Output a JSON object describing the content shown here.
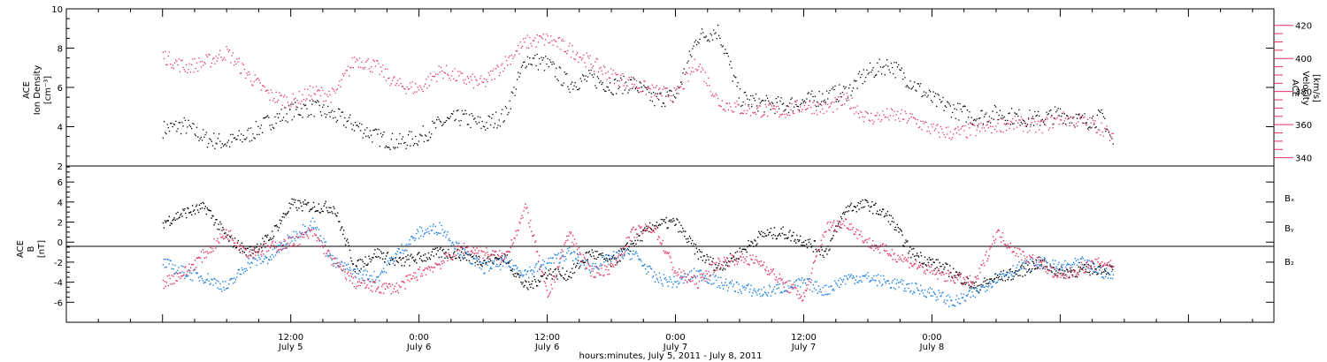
{
  "colors": {
    "black": "#000000",
    "red": "#e3325f",
    "blue": "#1a7fe0"
  },
  "chart_data": [
    {
      "type": "scatter",
      "panel": "top",
      "ylabel_left": [
        "ACE",
        "Ion Density",
        "[cm⁻³]"
      ],
      "ylabel_right": [
        "ACE",
        "Velocity",
        "[km/s]"
      ],
      "ylim_left": [
        2,
        10
      ],
      "ylim_right": [
        335,
        430
      ],
      "left_ticks": [
        "2",
        "4",
        "6",
        "8",
        "10"
      ],
      "right_ticks": [
        "340",
        "360",
        "380",
        "400",
        "420"
      ],
      "series": [
        {
          "axis": "left",
          "color": "#000000",
          "points": [
            [
              0,
              3.9
            ],
            [
              2,
              4.1
            ],
            [
              4,
              3.4
            ],
            [
              6,
              3.2
            ],
            [
              8,
              3.6
            ],
            [
              10,
              4.3
            ],
            [
              12,
              4.8
            ],
            [
              14,
              5.0
            ],
            [
              16,
              4.6
            ],
            [
              18,
              4.1
            ],
            [
              20,
              3.5
            ],
            [
              22,
              3.2
            ],
            [
              24,
              3.5
            ],
            [
              26,
              4.2
            ],
            [
              28,
              4.5
            ],
            [
              30,
              4.1
            ],
            [
              32,
              4.6
            ],
            [
              34,
              7.5
            ],
            [
              36,
              7.2
            ],
            [
              38,
              6.2
            ],
            [
              40,
              6.5
            ],
            [
              42,
              6.1
            ],
            [
              44,
              6.2
            ],
            [
              46,
              5.4
            ],
            [
              48,
              5.6
            ],
            [
              50,
              8.6
            ],
            [
              52,
              8.9
            ],
            [
              54,
              5.5
            ],
            [
              56,
              5.2
            ],
            [
              58,
              5.1
            ],
            [
              60,
              5.3
            ],
            [
              62,
              5.6
            ],
            [
              64,
              5.8
            ],
            [
              66,
              6.8
            ],
            [
              68,
              7.2
            ],
            [
              70,
              6.3
            ],
            [
              72,
              5.4
            ],
            [
              74,
              4.9
            ],
            [
              76,
              4.5
            ],
            [
              78,
              4.7
            ],
            [
              80,
              4.5
            ],
            [
              82,
              4.4
            ],
            [
              84,
              4.7
            ],
            [
              86,
              4.3
            ],
            [
              88,
              4.5
            ],
            [
              89,
              3.0
            ]
          ]
        },
        {
          "axis": "right",
          "color": "#e3325f",
          "points": [
            [
              0,
              402
            ],
            [
              2,
              395
            ],
            [
              4,
              398
            ],
            [
              6,
              404
            ],
            [
              8,
              390
            ],
            [
              10,
              378
            ],
            [
              12,
              374
            ],
            [
              14,
              380
            ],
            [
              16,
              378
            ],
            [
              18,
              400
            ],
            [
              20,
              395
            ],
            [
              22,
              384
            ],
            [
              24,
              382
            ],
            [
              26,
              393
            ],
            [
              28,
              388
            ],
            [
              30,
              385
            ],
            [
              32,
              398
            ],
            [
              34,
              410
            ],
            [
              36,
              412
            ],
            [
              38,
              406
            ],
            [
              40,
              398
            ],
            [
              42,
              390
            ],
            [
              44,
              385
            ],
            [
              46,
              380
            ],
            [
              48,
              378
            ],
            [
              50,
              398
            ],
            [
              52,
              374
            ],
            [
              54,
              370
            ],
            [
              56,
              369
            ],
            [
              58,
              368
            ],
            [
              60,
              372
            ],
            [
              62,
              370
            ],
            [
              64,
              375
            ],
            [
              66,
              364
            ],
            [
              68,
              366
            ],
            [
              70,
              364
            ],
            [
              72,
              357
            ],
            [
              74,
              355
            ],
            [
              76,
              357
            ],
            [
              78,
              360
            ],
            [
              80,
              361
            ],
            [
              82,
              359
            ],
            [
              84,
              364
            ],
            [
              86,
              362
            ],
            [
              88,
              358
            ],
            [
              89,
              350
            ]
          ]
        }
      ]
    },
    {
      "type": "scatter",
      "panel": "bottom",
      "ylabel": [
        "ACE",
        "B",
        "[nT]"
      ],
      "ylim": [
        -8,
        7.6
      ],
      "yticks": [
        "-6",
        "-4",
        "-2",
        "0",
        "2",
        "4",
        "6"
      ],
      "legend": [
        "Bₓ",
        "Bᵧ",
        "B₂"
      ],
      "legend_placement": "right",
      "series": [
        {
          "name": "Bₓ",
          "color": "#000000",
          "points": [
            [
              0,
              2.0
            ],
            [
              2,
              3.0
            ],
            [
              4,
              3.5
            ],
            [
              6,
              0.5
            ],
            [
              8,
              -1.0
            ],
            [
              10,
              0.5
            ],
            [
              12,
              3.8
            ],
            [
              14,
              3.6
            ],
            [
              16,
              3.5
            ],
            [
              18,
              -2.5
            ],
            [
              20,
              -1.0
            ],
            [
              22,
              -2.0
            ],
            [
              24,
              -1.5
            ],
            [
              26,
              -1.0
            ],
            [
              28,
              -1.2
            ],
            [
              30,
              -1.8
            ],
            [
              32,
              -1.5
            ],
            [
              34,
              -4.5
            ],
            [
              36,
              -3.0
            ],
            [
              38,
              -3.2
            ],
            [
              40,
              -1.0
            ],
            [
              42,
              -2.0
            ],
            [
              44,
              0.0
            ],
            [
              46,
              1.8
            ],
            [
              48,
              2.0
            ],
            [
              50,
              -1.0
            ],
            [
              52,
              -2.5
            ],
            [
              54,
              -1.0
            ],
            [
              56,
              0.8
            ],
            [
              58,
              1.0
            ],
            [
              60,
              0.2
            ],
            [
              62,
              -1.0
            ],
            [
              64,
              3.5
            ],
            [
              66,
              3.8
            ],
            [
              68,
              2.5
            ],
            [
              70,
              -1.0
            ],
            [
              72,
              -2.0
            ],
            [
              74,
              -3.0
            ],
            [
              76,
              -4.5
            ],
            [
              78,
              -3.5
            ],
            [
              80,
              -3.0
            ],
            [
              82,
              -2.0
            ],
            [
              84,
              -3.0
            ],
            [
              86,
              -2.8
            ],
            [
              88,
              -2.5
            ],
            [
              89,
              -2.8
            ]
          ]
        },
        {
          "name": "Bᵧ",
          "color": "#1a7fe0",
          "points": [
            [
              0,
              -2.0
            ],
            [
              2,
              -3.0
            ],
            [
              4,
              -3.5
            ],
            [
              6,
              -4.5
            ],
            [
              8,
              -2.0
            ],
            [
              10,
              -1.5
            ],
            [
              12,
              0.5
            ],
            [
              14,
              2.0
            ],
            [
              16,
              -2.0
            ],
            [
              18,
              -3.0
            ],
            [
              20,
              -3.5
            ],
            [
              22,
              -1.0
            ],
            [
              24,
              1.0
            ],
            [
              26,
              1.5
            ],
            [
              28,
              -1.0
            ],
            [
              30,
              -2.5
            ],
            [
              32,
              -2.0
            ],
            [
              34,
              -3.0
            ],
            [
              36,
              -2.0
            ],
            [
              38,
              -1.0
            ],
            [
              40,
              -2.5
            ],
            [
              42,
              -1.5
            ],
            [
              44,
              -1.0
            ],
            [
              46,
              -3.5
            ],
            [
              48,
              -4.0
            ],
            [
              50,
              -3.0
            ],
            [
              52,
              -4.0
            ],
            [
              54,
              -4.5
            ],
            [
              56,
              -5.0
            ],
            [
              58,
              -4.5
            ],
            [
              60,
              -4.0
            ],
            [
              62,
              -4.8
            ],
            [
              64,
              -3.5
            ],
            [
              66,
              -3.5
            ],
            [
              68,
              -4.0
            ],
            [
              70,
              -4.5
            ],
            [
              72,
              -5.0
            ],
            [
              74,
              -6.0
            ],
            [
              76,
              -5.0
            ],
            [
              78,
              -3.5
            ],
            [
              80,
              -2.5
            ],
            [
              82,
              -2.0
            ],
            [
              84,
              -2.5
            ],
            [
              86,
              -2.0
            ],
            [
              88,
              -3.0
            ],
            [
              89,
              -3.5
            ]
          ]
        },
        {
          "name": "B₂",
          "color": "#e3325f",
          "points": [
            [
              0,
              -4.0
            ],
            [
              2,
              -3.0
            ],
            [
              4,
              -1.0
            ],
            [
              6,
              1.0
            ],
            [
              8,
              -1.0
            ],
            [
              10,
              -0.5
            ],
            [
              12,
              0.0
            ],
            [
              14,
              1.0
            ],
            [
              16,
              -2.0
            ],
            [
              18,
              -4.0
            ],
            [
              20,
              -4.5
            ],
            [
              22,
              -4.5
            ],
            [
              24,
              -3.0
            ],
            [
              26,
              -2.0
            ],
            [
              28,
              -0.5
            ],
            [
              30,
              -1.0
            ],
            [
              32,
              -1.5
            ],
            [
              34,
              3.5
            ],
            [
              36,
              -5.5
            ],
            [
              38,
              1.0
            ],
            [
              40,
              -3.0
            ],
            [
              42,
              -2.5
            ],
            [
              44,
              1.0
            ],
            [
              46,
              1.5
            ],
            [
              48,
              -3.0
            ],
            [
              50,
              -4.0
            ],
            [
              52,
              -2.0
            ],
            [
              54,
              -1.5
            ],
            [
              56,
              -2.0
            ],
            [
              58,
              -4.0
            ],
            [
              60,
              -5.5
            ],
            [
              62,
              1.5
            ],
            [
              64,
              2.0
            ],
            [
              66,
              0.0
            ],
            [
              68,
              -1.0
            ],
            [
              70,
              -2.0
            ],
            [
              72,
              -3.0
            ],
            [
              74,
              -3.5
            ],
            [
              76,
              -4.0
            ],
            [
              78,
              1.0
            ],
            [
              80,
              -1.0
            ],
            [
              82,
              -2.0
            ],
            [
              84,
              -3.5
            ],
            [
              86,
              -2.5
            ],
            [
              88,
              -2.0
            ],
            [
              89,
              -2.2
            ]
          ]
        }
      ]
    }
  ],
  "x_axis": {
    "ticks": [
      {
        "hour": 12,
        "time": "12:00",
        "date": "July 5"
      },
      {
        "hour": 24,
        "time": "0:00",
        "date": "July 6"
      },
      {
        "hour": 36,
        "time": "12:00",
        "date": "July 6"
      },
      {
        "hour": 48,
        "time": "0:00",
        "date": "July 7"
      },
      {
        "hour": 60,
        "time": "12:00",
        "date": "July 7"
      },
      {
        "hour": 72,
        "time": "0:00",
        "date": "July 8"
      }
    ],
    "xlabel": "hours:minutes, July  5, 2011 - July  8, 2011"
  }
}
